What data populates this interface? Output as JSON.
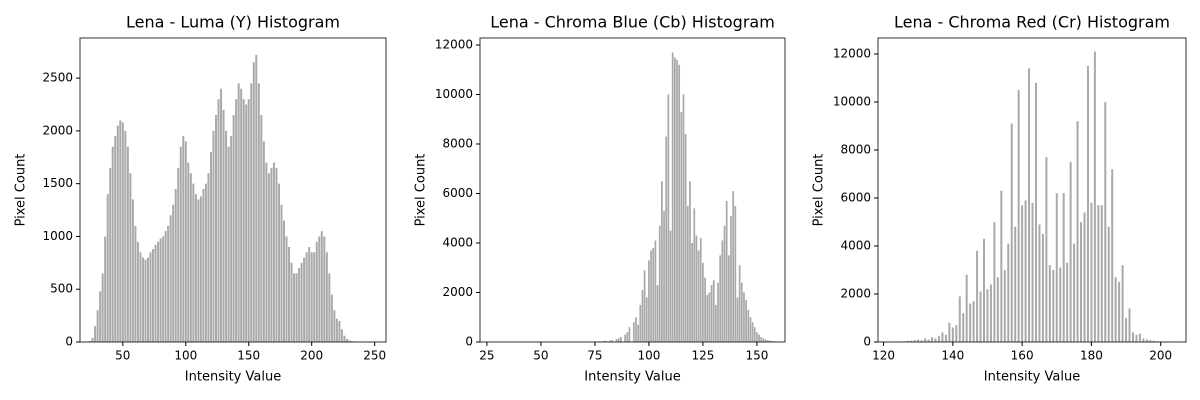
{
  "chart_data": [
    {
      "type": "bar",
      "title": "Lena - Luma (Y) Histogram",
      "x_label": "Intensity Value",
      "y_label": "Pixel Count",
      "color": "#a9a9a9",
      "x": [
        22,
        24,
        26,
        28,
        30,
        32,
        34,
        36,
        38,
        40,
        42,
        44,
        46,
        48,
        50,
        52,
        54,
        56,
        58,
        60,
        62,
        64,
        66,
        68,
        70,
        72,
        74,
        76,
        78,
        80,
        82,
        84,
        86,
        88,
        90,
        92,
        94,
        96,
        98,
        100,
        102,
        104,
        106,
        108,
        110,
        112,
        114,
        116,
        118,
        120,
        122,
        124,
        126,
        128,
        130,
        132,
        134,
        136,
        138,
        140,
        142,
        144,
        146,
        148,
        150,
        152,
        154,
        156,
        158,
        160,
        162,
        164,
        166,
        168,
        170,
        172,
        174,
        176,
        178,
        180,
        182,
        184,
        186,
        188,
        190,
        192,
        194,
        196,
        198,
        200,
        202,
        204,
        206,
        208,
        210,
        212,
        214,
        216,
        218,
        220,
        222,
        224,
        226,
        228,
        230,
        232,
        234,
        236,
        238,
        240
      ],
      "values": [
        0,
        10,
        40,
        150,
        300,
        480,
        650,
        1000,
        1400,
        1650,
        1850,
        1950,
        2050,
        2100,
        2080,
        2000,
        1850,
        1600,
        1350,
        1100,
        950,
        850,
        800,
        780,
        800,
        850,
        880,
        920,
        950,
        980,
        1000,
        1050,
        1100,
        1200,
        1300,
        1450,
        1650,
        1850,
        1950,
        1900,
        1700,
        1600,
        1500,
        1400,
        1350,
        1380,
        1450,
        1500,
        1600,
        1800,
        2000,
        2150,
        2300,
        2400,
        2200,
        2000,
        1850,
        1950,
        2150,
        2300,
        2450,
        2400,
        2300,
        2250,
        2300,
        2450,
        2650,
        2720,
        2450,
        2150,
        1900,
        1700,
        1600,
        1650,
        1700,
        1650,
        1500,
        1300,
        1150,
        1000,
        900,
        750,
        650,
        650,
        700,
        750,
        800,
        850,
        900,
        850,
        850,
        950,
        1000,
        1050,
        1000,
        850,
        650,
        450,
        300,
        220,
        200,
        120,
        60,
        30,
        15,
        8,
        4,
        2,
        1,
        0
      ],
      "xlim": [
        16,
        259
      ],
      "ylim": [
        0,
        2880
      ],
      "xticks": [
        50,
        100,
        150,
        200,
        250
      ],
      "yticks": [
        0,
        500,
        1000,
        1500,
        2000,
        2500
      ]
    },
    {
      "type": "bar",
      "title": "Lena - Chroma Blue (Cb) Histogram",
      "x_label": "Intensity Value",
      "y_label": "Pixel Count",
      "color": "#a9a9a9",
      "x": [
        75,
        76,
        77,
        78,
        79,
        80,
        81,
        82,
        83,
        84,
        85,
        86,
        87,
        88,
        89,
        90,
        91,
        92,
        93,
        94,
        95,
        96,
        97,
        98,
        99,
        100,
        101,
        102,
        103,
        104,
        105,
        106,
        107,
        108,
        109,
        110,
        111,
        112,
        113,
        114,
        115,
        116,
        117,
        118,
        119,
        120,
        121,
        122,
        123,
        124,
        125,
        126,
        127,
        128,
        129,
        130,
        131,
        132,
        133,
        134,
        135,
        136,
        137,
        138,
        139,
        140,
        141,
        142,
        143,
        144,
        145,
        146,
        147,
        148,
        149,
        150,
        151,
        152,
        153,
        154,
        155,
        156,
        157,
        158,
        159,
        160
      ],
      "values": [
        20,
        0,
        30,
        0,
        40,
        50,
        0,
        60,
        80,
        0,
        120,
        150,
        200,
        0,
        300,
        400,
        600,
        0,
        800,
        1000,
        700,
        1500,
        2100,
        2900,
        1800,
        3300,
        3700,
        3800,
        4100,
        2300,
        4700,
        6500,
        5300,
        8300,
        10000,
        4500,
        11700,
        11500,
        11400,
        11200,
        9300,
        10000,
        8400,
        5500,
        6500,
        4000,
        5400,
        4300,
        3700,
        4200,
        3200,
        2600,
        1900,
        2000,
        2300,
        2500,
        1500,
        2400,
        3500,
        4100,
        4700,
        5700,
        3500,
        5100,
        6100,
        5500,
        1800,
        3100,
        2400,
        2000,
        1700,
        1300,
        1000,
        800,
        600,
        400,
        300,
        200,
        150,
        100,
        80,
        60,
        40,
        30,
        20,
        10
      ],
      "xlim": [
        21.8,
        163
      ],
      "ylim": [
        0,
        12283
      ],
      "xticks": [
        25,
        50,
        75,
        100,
        125,
        150
      ],
      "yticks": [
        0,
        2000,
        4000,
        6000,
        8000,
        10000,
        12000
      ]
    },
    {
      "type": "bar",
      "title": "Lena - Chroma Red (Cr) Histogram",
      "x_label": "Intensity Value",
      "y_label": "Pixel Count",
      "color": "#a9a9a9",
      "x": [
        125,
        126,
        127,
        128,
        129,
        130,
        131,
        132,
        133,
        134,
        135,
        136,
        137,
        138,
        139,
        140,
        141,
        142,
        143,
        144,
        145,
        146,
        147,
        148,
        149,
        150,
        151,
        152,
        153,
        154,
        155,
        156,
        157,
        158,
        159,
        160,
        161,
        162,
        163,
        164,
        165,
        166,
        167,
        168,
        169,
        170,
        171,
        172,
        173,
        174,
        175,
        176,
        177,
        178,
        179,
        180,
        181,
        182,
        183,
        184,
        185,
        186,
        187,
        188,
        189,
        190,
        191,
        192,
        193,
        194,
        195,
        196,
        197,
        198,
        199,
        200,
        201,
        202,
        203,
        204,
        205
      ],
      "values": [
        0,
        30,
        50,
        60,
        80,
        100,
        70,
        150,
        100,
        200,
        150,
        250,
        400,
        300,
        800,
        600,
        700,
        1900,
        1200,
        2800,
        1600,
        1700,
        3800,
        2100,
        4300,
        2200,
        2400,
        5000,
        2700,
        6300,
        3000,
        4100,
        9100,
        4800,
        10500,
        5700,
        5900,
        11400,
        5800,
        10800,
        4900,
        4500,
        7700,
        3200,
        3000,
        6200,
        3100,
        6200,
        3300,
        7500,
        4100,
        9200,
        5000,
        5400,
        11500,
        5800,
        12100,
        5700,
        5700,
        10000,
        4800,
        7200,
        2700,
        2500,
        3200,
        1000,
        1400,
        400,
        300,
        350,
        150,
        100,
        80,
        50,
        30,
        20,
        10,
        5,
        3,
        2,
        1
      ],
      "xlim": [
        118.4,
        207.3
      ],
      "ylim": [
        0,
        12667
      ],
      "xticks": [
        120,
        140,
        160,
        180,
        200
      ],
      "yticks": [
        0,
        2000,
        4000,
        6000,
        8000,
        10000,
        12000
      ]
    }
  ]
}
